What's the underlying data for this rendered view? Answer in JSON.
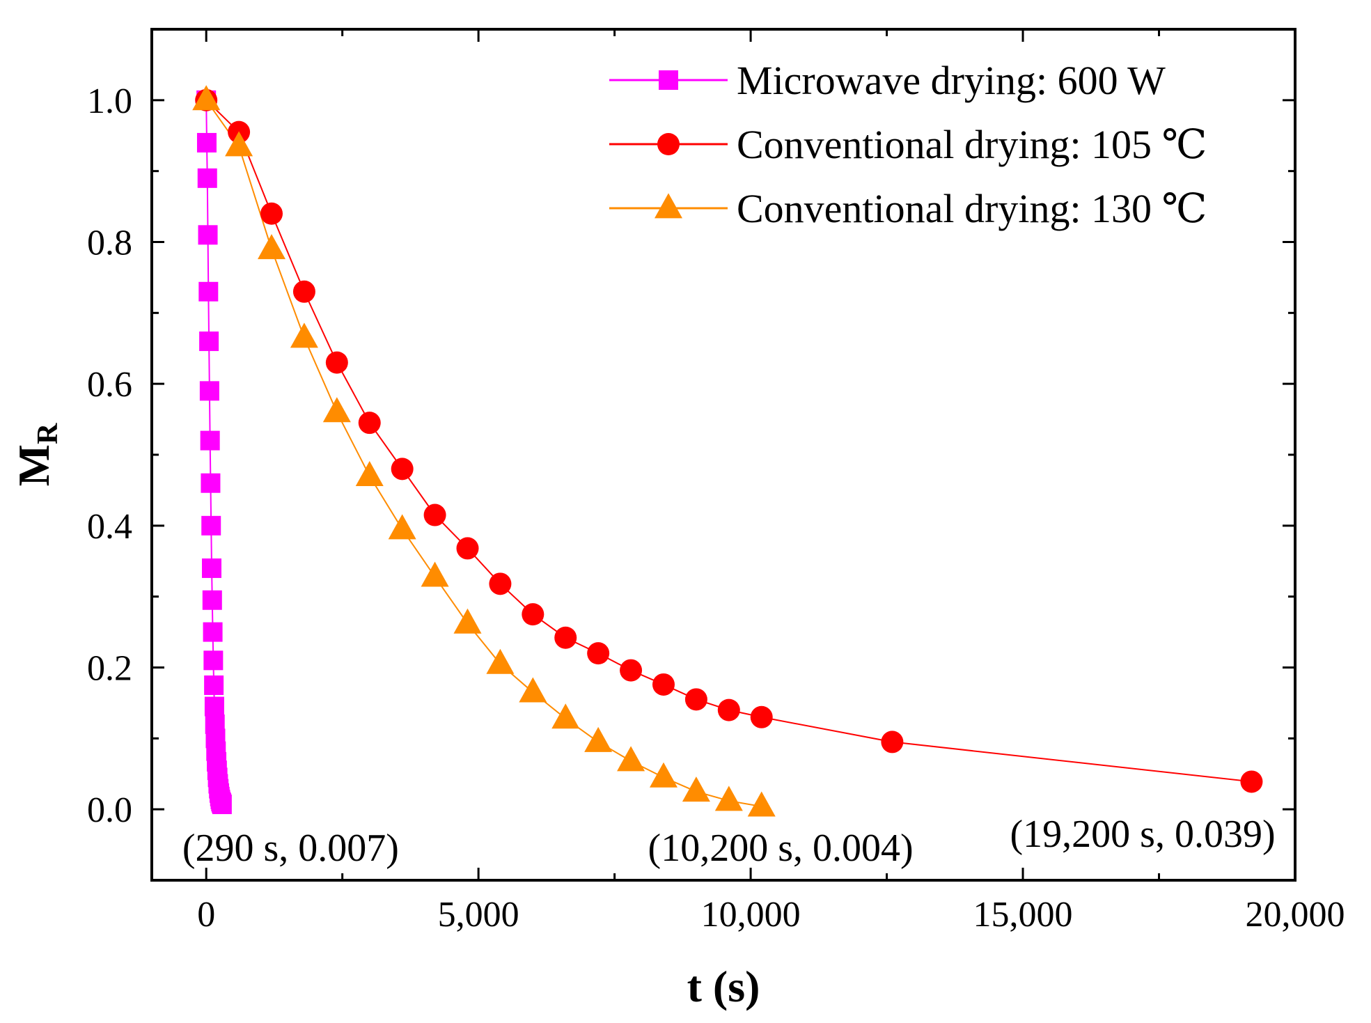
{
  "chart_data": {
    "type": "line",
    "xlabel": "t (s)",
    "ylabel_main": "M",
    "ylabel_sub": "R",
    "xlim": [
      -1000,
      20000
    ],
    "ylim": [
      -0.1,
      1.1
    ],
    "xticks": [
      0,
      5000,
      10000,
      15000,
      20000
    ],
    "xtick_labels": [
      "0",
      "5,000",
      "10,000",
      "15,000",
      "20,000"
    ],
    "yticks": [
      0.0,
      0.2,
      0.4,
      0.6,
      0.8,
      1.0
    ],
    "ytick_labels": [
      "0.0",
      "0.2",
      "0.4",
      "0.6",
      "0.8",
      "1.0"
    ],
    "legend_position": "top-right",
    "series": [
      {
        "name": "Microwave drying: 600 W",
        "color": "#ff00ff",
        "marker": "square",
        "x": [
          0,
          10,
          20,
          30,
          40,
          50,
          60,
          70,
          80,
          90,
          100,
          110,
          120,
          130,
          140,
          150,
          160,
          170,
          180,
          190,
          200,
          210,
          220,
          230,
          240,
          250,
          260,
          270,
          280,
          290
        ],
        "y": [
          1.0,
          0.94,
          0.89,
          0.81,
          0.73,
          0.66,
          0.59,
          0.52,
          0.46,
          0.4,
          0.34,
          0.295,
          0.25,
          0.21,
          0.175,
          0.145,
          0.12,
          0.1,
          0.082,
          0.067,
          0.055,
          0.045,
          0.036,
          0.029,
          0.023,
          0.018,
          0.014,
          0.011,
          0.009,
          0.007
        ]
      },
      {
        "name": "Conventional drying: 105 ℃",
        "color": "#ff0000",
        "marker": "circle",
        "x": [
          0,
          600,
          1200,
          1800,
          2400,
          3000,
          3600,
          4200,
          4800,
          5400,
          6000,
          6600,
          7200,
          7800,
          8400,
          9000,
          9600,
          10200,
          12600,
          19200
        ],
        "y": [
          1.0,
          0.955,
          0.84,
          0.73,
          0.63,
          0.545,
          0.48,
          0.415,
          0.368,
          0.318,
          0.275,
          0.242,
          0.22,
          0.196,
          0.176,
          0.155,
          0.14,
          0.13,
          0.095,
          0.039
        ]
      },
      {
        "name": "Conventional drying: 130 ℃",
        "color": "#ff8c00",
        "marker": "triangle",
        "x": [
          0,
          600,
          1200,
          1800,
          2400,
          3000,
          3600,
          4200,
          4800,
          5400,
          6000,
          6600,
          7200,
          7800,
          8400,
          9000,
          9600,
          10200
        ],
        "y": [
          1.0,
          0.935,
          0.79,
          0.665,
          0.56,
          0.47,
          0.395,
          0.328,
          0.262,
          0.205,
          0.165,
          0.128,
          0.095,
          0.068,
          0.045,
          0.025,
          0.012,
          0.004
        ]
      }
    ],
    "annotations": [
      {
        "text": "(290 s, 0.007)",
        "x": 1550,
        "y": -0.055
      },
      {
        "text": "(10,200 s, 0.004)",
        "x": 10550,
        "y": -0.055
      },
      {
        "text": "(19,200 s, 0.039)",
        "x": 17200,
        "y": -0.035
      }
    ]
  }
}
